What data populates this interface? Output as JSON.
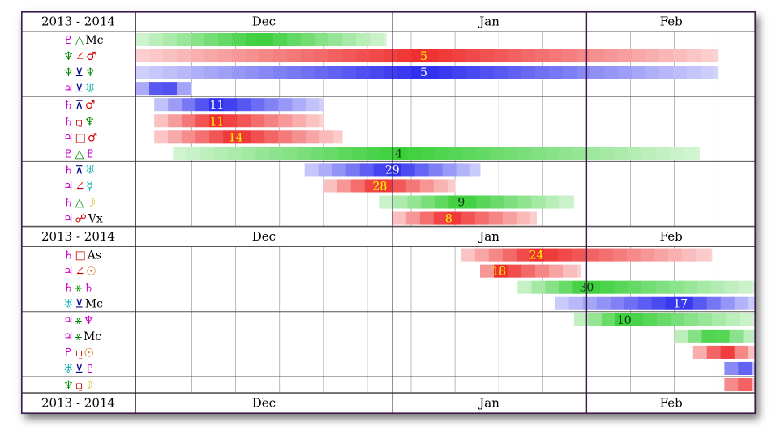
{
  "chart_data": {
    "type": "table",
    "year_label": "2013 - 2014",
    "months": [
      "Dec",
      "Jan",
      "Feb"
    ],
    "range": {
      "start": "2013-11-21",
      "end": "2014-02-28"
    },
    "colors": {
      "green": "#2ecc2e",
      "red": "#ee2222",
      "blue": "#2222ee",
      "frame": "#3c1a4a",
      "grid": "#a8a8a8"
    },
    "sections": [
      {
        "type": "header"
      },
      {
        "type": "group",
        "rows": [
          {
            "planet1": {
              "glyph": "♇",
              "color": "#cc00cc"
            },
            "aspect": {
              "glyph": "△",
              "color": "#008800"
            },
            "planet2": {
              "glyph": "Mc",
              "color": "#000000"
            },
            "color": "green",
            "start": "2013-11-21",
            "end": "2013-12-31",
            "peak": null,
            "label": ""
          },
          {
            "planet1": {
              "glyph": "♆",
              "color": "#008800"
            },
            "aspect": {
              "glyph": "∠",
              "color": "#cc0000"
            },
            "planet2": {
              "glyph": "♂",
              "color": "#cc0000"
            },
            "color": "red",
            "start": "2013-11-21",
            "end": "2014-02-22",
            "peak": "2014-01-06",
            "label": "5"
          },
          {
            "planet1": {
              "glyph": "♆",
              "color": "#008800"
            },
            "aspect": {
              "glyph": "⊻",
              "color": "#000088"
            },
            "planet2": {
              "glyph": "♆",
              "color": "#008800"
            },
            "color": "blue",
            "start": "2013-11-21",
            "end": "2014-02-22",
            "peak": "2014-01-06",
            "label": "5"
          },
          {
            "planet1": {
              "glyph": "♃",
              "color": "#cc00cc"
            },
            "aspect": {
              "glyph": "⊻",
              "color": "#000088"
            },
            "planet2": {
              "glyph": "♅",
              "color": "#00aaaa"
            },
            "color": "blue",
            "start": "2013-11-21",
            "end": "2013-11-30",
            "peak": null,
            "label": ""
          }
        ]
      },
      {
        "type": "group",
        "rows": [
          {
            "planet1": {
              "glyph": "♄",
              "color": "#cc00cc"
            },
            "aspect": {
              "glyph": "⊼",
              "color": "#000088"
            },
            "planet2": {
              "glyph": "♂",
              "color": "#cc0000"
            },
            "color": "blue",
            "start": "2013-11-24",
            "end": "2013-12-21",
            "peak": "2013-12-04",
            "label": "11"
          },
          {
            "planet1": {
              "glyph": "♄",
              "color": "#cc00cc"
            },
            "aspect": {
              "glyph": "⚼",
              "color": "#cc0000"
            },
            "planet2": {
              "glyph": "♆",
              "color": "#008800"
            },
            "color": "red",
            "start": "2013-11-24",
            "end": "2013-12-21",
            "peak": "2013-12-04",
            "label": "11"
          },
          {
            "planet1": {
              "glyph": "♃",
              "color": "#cc00cc"
            },
            "aspect": {
              "glyph": "□",
              "color": "#cc0000"
            },
            "planet2": {
              "glyph": "♂",
              "color": "#cc0000"
            },
            "color": "red",
            "start": "2013-11-24",
            "end": "2013-12-24",
            "peak": "2013-12-07",
            "label": "14"
          },
          {
            "planet1": {
              "glyph": "♇",
              "color": "#cc00cc"
            },
            "aspect": {
              "glyph": "△",
              "color": "#008800"
            },
            "planet2": {
              "glyph": "♇",
              "color": "#cc00cc"
            },
            "color": "green",
            "start": "2013-11-27",
            "end": "2014-02-19",
            "peak": "2014-01-02",
            "label": "4"
          }
        ]
      },
      {
        "type": "group",
        "rows": [
          {
            "planet1": {
              "glyph": "♄",
              "color": "#cc00cc"
            },
            "aspect": {
              "glyph": "⊼",
              "color": "#000088"
            },
            "planet2": {
              "glyph": "♅",
              "color": "#00aaaa"
            },
            "color": "blue",
            "start": "2013-12-18",
            "end": "2014-01-15",
            "peak": "2014-01-01",
            "label": "29"
          },
          {
            "planet1": {
              "glyph": "♃",
              "color": "#cc00cc"
            },
            "aspect": {
              "glyph": "∠",
              "color": "#cc0000"
            },
            "planet2": {
              "glyph": "☿",
              "color": "#00aaaa"
            },
            "color": "red",
            "start": "2013-12-21",
            "end": "2014-01-11",
            "peak": "2013-12-30",
            "label": "28"
          },
          {
            "planet1": {
              "glyph": "♄",
              "color": "#cc00cc"
            },
            "aspect": {
              "glyph": "△",
              "color": "#008800"
            },
            "planet2": {
              "glyph": "☽",
              "color": "#ccaa00"
            },
            "color": "green",
            "start": "2013-12-30",
            "end": "2014-01-30",
            "peak": "2014-01-12",
            "label": "9"
          },
          {
            "planet1": {
              "glyph": "♃",
              "color": "#cc00cc"
            },
            "aspect": {
              "glyph": "☍",
              "color": "#cc0000"
            },
            "planet2": {
              "glyph": "Vx",
              "color": "#000000"
            },
            "color": "red",
            "start": "2014-01-01",
            "end": "2014-01-24",
            "peak": "2014-01-10",
            "label": "8"
          }
        ]
      },
      {
        "type": "header"
      },
      {
        "type": "group",
        "rows": [
          {
            "planet1": {
              "glyph": "♄",
              "color": "#cc00cc"
            },
            "aspect": {
              "glyph": "□",
              "color": "#cc0000"
            },
            "planet2": {
              "glyph": "As",
              "color": "#000000"
            },
            "color": "red",
            "start": "2014-01-12",
            "end": "2014-02-21",
            "peak": "2014-01-24",
            "label": "24"
          },
          {
            "planet1": {
              "glyph": "♃",
              "color": "#cc00cc"
            },
            "aspect": {
              "glyph": "∠",
              "color": "#cc0000"
            },
            "planet2": {
              "glyph": "☉",
              "color": "#cc6600"
            },
            "color": "red",
            "start": "2014-01-15",
            "end": "2014-01-31",
            "peak": "2014-01-18",
            "label": "18"
          },
          {
            "planet1": {
              "glyph": "♄",
              "color": "#cc00cc"
            },
            "aspect": {
              "glyph": "⚹",
              "color": "#008800"
            },
            "planet2": {
              "glyph": "♄",
              "color": "#cc00cc"
            },
            "color": "green",
            "start": "2014-01-21",
            "end": "2014-02-28",
            "peak": "2014-02-01",
            "label": "30"
          },
          {
            "planet1": {
              "glyph": "♅",
              "color": "#00aaaa"
            },
            "aspect": {
              "glyph": "⊻",
              "color": "#000088"
            },
            "planet2": {
              "glyph": "Mc",
              "color": "#000000"
            },
            "color": "blue",
            "start": "2014-01-27",
            "end": "2014-02-28",
            "peak": "2014-02-16",
            "label": "17"
          }
        ]
      },
      {
        "type": "group",
        "rows": [
          {
            "planet1": {
              "glyph": "♃",
              "color": "#cc00cc"
            },
            "aspect": {
              "glyph": "⚹",
              "color": "#008800"
            },
            "planet2": {
              "glyph": "♆",
              "color": "#cc00cc"
            },
            "color": "green",
            "start": "2014-01-30",
            "end": "2014-02-28",
            "peak": "2014-02-07",
            "label": "10"
          },
          {
            "planet1": {
              "glyph": "♃",
              "color": "#cc00cc"
            },
            "aspect": {
              "glyph": "⚹",
              "color": "#008800"
            },
            "planet2": {
              "glyph": "Mc",
              "color": "#000000"
            },
            "color": "green",
            "start": "2014-02-15",
            "end": "2014-02-28",
            "peak": null,
            "label": ""
          },
          {
            "planet1": {
              "glyph": "♇",
              "color": "#cc00cc"
            },
            "aspect": {
              "glyph": "⚼",
              "color": "#cc0000"
            },
            "planet2": {
              "glyph": "☉",
              "color": "#cc6600"
            },
            "color": "red",
            "start": "2014-02-18",
            "end": "2014-02-28",
            "peak": null,
            "label": ""
          },
          {
            "planet1": {
              "glyph": "♅",
              "color": "#00aaaa"
            },
            "aspect": {
              "glyph": "⊻",
              "color": "#000088"
            },
            "planet2": {
              "glyph": "♇",
              "color": "#cc00cc"
            },
            "color": "blue",
            "start": "2014-02-23",
            "end": "2014-02-28",
            "peak": null,
            "label": ""
          }
        ]
      },
      {
        "type": "group",
        "rows": [
          {
            "planet1": {
              "glyph": "♆",
              "color": "#008800"
            },
            "aspect": {
              "glyph": "⚼",
              "color": "#cc0000"
            },
            "planet2": {
              "glyph": "☽",
              "color": "#ccaa00"
            },
            "color": "red",
            "start": "2014-02-23",
            "end": "2014-02-28",
            "peak": null,
            "label": ""
          }
        ]
      },
      {
        "type": "header"
      }
    ]
  }
}
